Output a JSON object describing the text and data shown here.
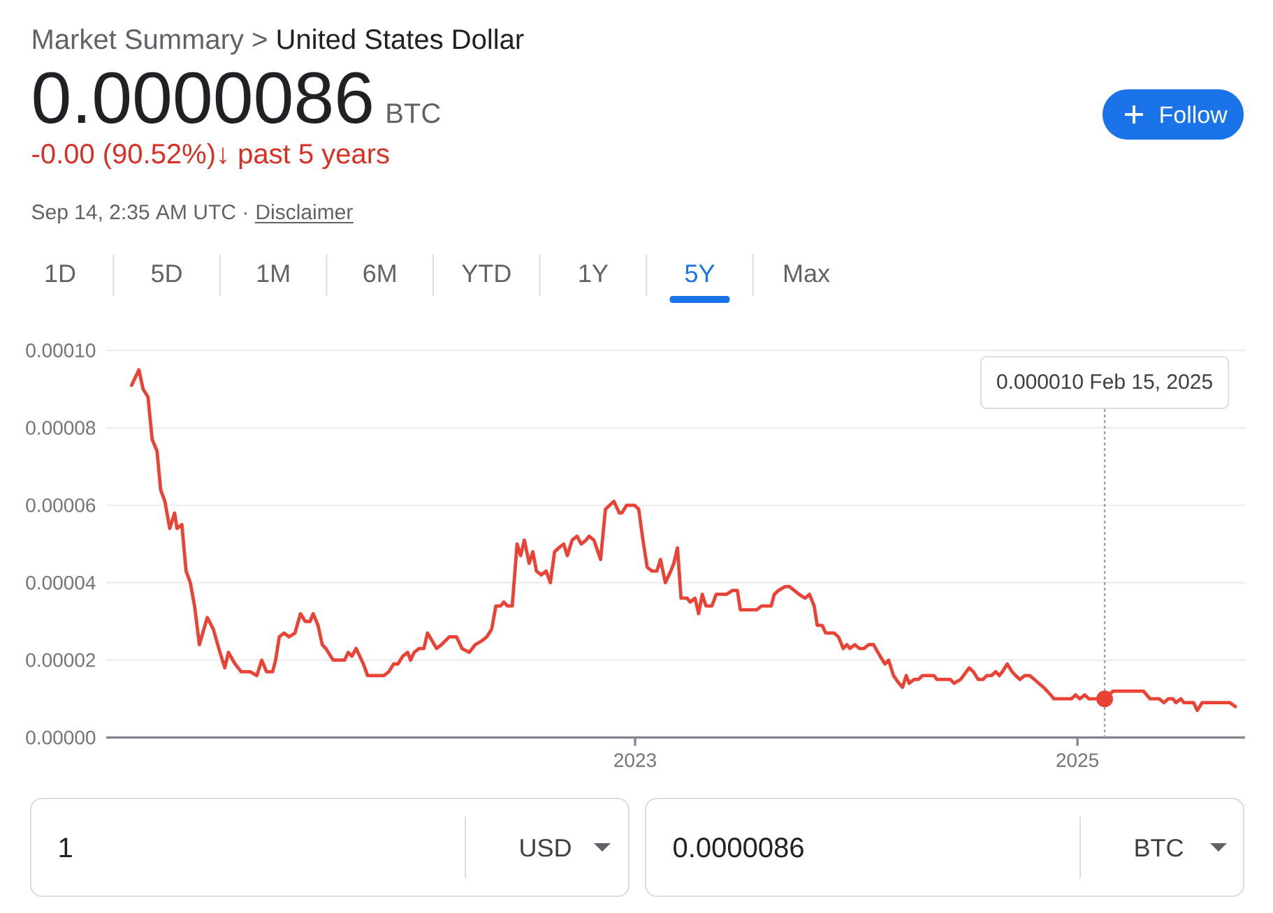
{
  "chart_data": {
    "type": "line",
    "title": "United States Dollar",
    "subtitle": "0.0000086",
    "x": [
      "2020-09-21",
      "2020-10-03",
      "2020-10-10",
      "2020-10-18",
      "2020-10-25",
      "2020-11-02",
      "2020-11-08",
      "2020-11-15",
      "2020-11-23",
      "2020-12-01",
      "2020-12-05",
      "2020-12-13",
      "2020-12-20",
      "2020-12-27",
      "2021-01-03",
      "2021-01-11",
      "2021-01-24",
      "2021-02-03",
      "2021-02-14",
      "2021-02-22",
      "2021-02-28",
      "2021-03-11",
      "2021-03-21",
      "2021-03-29",
      "2021-04-05",
      "2021-04-16",
      "2021-04-24",
      "2021-05-02",
      "2021-05-12",
      "2021-05-17",
      "2021-05-23",
      "2021-05-31",
      "2021-06-08",
      "2021-06-18",
      "2021-06-27",
      "2021-07-05",
      "2021-07-13",
      "2021-07-18",
      "2021-07-26",
      "2021-08-02",
      "2021-08-08",
      "2021-08-20",
      "2021-08-28",
      "2021-09-08",
      "2021-09-14",
      "2021-09-20",
      "2021-09-27",
      "2021-10-09",
      "2021-10-16",
      "2021-11-12",
      "2021-11-20",
      "2021-11-28",
      "2021-12-05",
      "2021-12-13",
      "2021-12-21",
      "2021-12-26",
      "2022-01-01",
      "2022-01-09",
      "2022-01-17",
      "2022-01-23",
      "2022-02-07",
      "2022-02-15",
      "2022-02-28",
      "2022-03-12",
      "2022-03-21",
      "2022-04-02",
      "2022-04-12",
      "2022-04-23",
      "2022-05-01",
      "2022-05-09",
      "2022-05-16",
      "2022-05-24",
      "2022-05-29",
      "2022-06-04",
      "2022-06-12",
      "2022-06-20",
      "2022-06-26",
      "2022-07-02",
      "2022-07-10",
      "2022-07-16",
      "2022-07-22",
      "2022-07-30",
      "2022-08-07",
      "2022-08-14",
      "2022-08-21",
      "2022-08-28",
      "2022-09-05",
      "2022-09-11",
      "2022-09-19",
      "2022-09-27",
      "2022-10-04",
      "2022-10-12",
      "2022-10-17",
      "2022-10-25",
      "2022-11-05",
      "2022-11-13",
      "2022-11-27",
      "2022-12-06",
      "2022-12-10",
      "2022-12-18",
      "2022-12-31",
      "2023-01-07",
      "2023-01-14",
      "2023-01-21",
      "2023-01-29",
      "2023-02-06",
      "2023-02-12",
      "2023-02-20",
      "2023-03-01",
      "2023-03-06",
      "2023-03-12",
      "2023-03-18",
      "2023-03-28",
      "2023-04-02",
      "2023-04-10",
      "2023-04-16",
      "2023-04-22",
      "2023-04-28",
      "2023-05-08",
      "2023-05-15",
      "2023-06-01",
      "2023-06-11",
      "2023-06-19",
      "2023-06-24",
      "2023-07-21",
      "2023-07-29",
      "2023-08-14",
      "2023-08-19",
      "2023-08-26",
      "2023-09-06",
      "2023-09-13",
      "2023-09-21",
      "2023-09-29",
      "2023-10-09",
      "2023-10-16",
      "2023-10-24",
      "2023-10-29",
      "2023-11-06",
      "2023-11-12",
      "2023-11-26",
      "2023-12-03",
      "2023-12-11",
      "2023-12-17",
      "2023-12-22",
      "2023-12-30",
      "2024-01-07",
      "2024-01-14",
      "2024-01-22",
      "2024-01-30",
      "2024-02-10",
      "2024-02-18",
      "2024-02-24",
      "2024-03-03",
      "2024-03-12",
      "2024-03-18",
      "2024-03-24",
      "2024-03-29",
      "2024-04-06",
      "2024-04-13",
      "2024-04-20",
      "2024-05-09",
      "2024-05-14",
      "2024-05-28",
      "2024-06-05",
      "2024-06-11",
      "2024-06-22",
      "2024-07-06",
      "2024-07-13",
      "2024-07-21",
      "2024-07-29",
      "2024-08-04",
      "2024-08-12",
      "2024-08-19",
      "2024-08-25",
      "2024-08-30",
      "2024-09-07",
      "2024-09-15",
      "2024-09-21",
      "2024-09-28",
      "2024-10-06",
      "2024-10-14",
      "2024-10-22",
      "2024-10-29",
      "2024-11-06",
      "2024-11-18",
      "2024-11-23",
      "2024-12-22",
      "2024-12-29",
      "2025-01-05",
      "2025-01-13",
      "2025-01-20",
      "2025-02-06",
      "2025-02-15",
      "2025-03-01",
      "2025-04-20",
      "2025-05-01",
      "2025-05-16",
      "2025-05-24",
      "2025-05-31",
      "2025-06-08",
      "2025-06-13",
      "2025-06-21",
      "2025-06-26",
      "2025-07-12",
      "2025-07-18",
      "2025-07-26",
      "2025-09-10",
      "2025-09-19"
    ],
    "values": [
      9.1e-05,
      9.5e-05,
      9e-05,
      8.8e-05,
      7.7e-05,
      7.4e-05,
      6.4e-05,
      6.1e-05,
      5.4e-05,
      5.8e-05,
      5.4e-05,
      5.5e-05,
      4.3e-05,
      4e-05,
      3.4e-05,
      2.4e-05,
      3.1e-05,
      2.8e-05,
      2.2e-05,
      1.8e-05,
      2.2e-05,
      1.9e-05,
      1.7e-05,
      1.7e-05,
      1.7e-05,
      1.6e-05,
      2e-05,
      1.7e-05,
      1.7e-05,
      2e-05,
      2.6e-05,
      2.7e-05,
      2.6e-05,
      2.7e-05,
      3.2e-05,
      3e-05,
      3e-05,
      3.2e-05,
      2.9e-05,
      2.4e-05,
      2.3e-05,
      2e-05,
      2e-05,
      2e-05,
      2.2e-05,
      2.1e-05,
      2.3e-05,
      1.9e-05,
      1.6e-05,
      1.6e-05,
      1.7e-05,
      1.9e-05,
      1.9e-05,
      2.1e-05,
      2.2e-05,
      2e-05,
      2.2e-05,
      2.3e-05,
      2.3e-05,
      2.7e-05,
      2.3e-05,
      2.4e-05,
      2.6e-05,
      2.6e-05,
      2.3e-05,
      2.2e-05,
      2.4e-05,
      2.5e-05,
      2.6e-05,
      2.8e-05,
      3.4e-05,
      3.4e-05,
      3.5e-05,
      3.4e-05,
      3.4e-05,
      5e-05,
      4.7e-05,
      5.1e-05,
      4.5e-05,
      4.8e-05,
      4.3e-05,
      4.2e-05,
      4.3e-05,
      4e-05,
      4.8e-05,
      4.9e-05,
      5e-05,
      4.7e-05,
      5.1e-05,
      5.2e-05,
      5e-05,
      5.1e-05,
      5.2e-05,
      5.1e-05,
      4.6e-05,
      5.9e-05,
      6.1e-05,
      5.8e-05,
      5.8e-05,
      6e-05,
      6e-05,
      5.9e-05,
      5.1e-05,
      4.4e-05,
      4.3e-05,
      4.3e-05,
      4.6e-05,
      4e-05,
      4.3e-05,
      4.5e-05,
      4.9e-05,
      3.6e-05,
      3.6e-05,
      3.5e-05,
      3.6e-05,
      3.2e-05,
      3.7e-05,
      3.4e-05,
      3.4e-05,
      3.7e-05,
      3.7e-05,
      3.8e-05,
      3.8e-05,
      3.3e-05,
      3.3e-05,
      3.4e-05,
      3.4e-05,
      3.7e-05,
      3.8e-05,
      3.9e-05,
      3.9e-05,
      3.8e-05,
      3.7e-05,
      3.6e-05,
      3.7e-05,
      3.4e-05,
      2.9e-05,
      2.9e-05,
      2.7e-05,
      2.7e-05,
      2.6e-05,
      2.3e-05,
      2.4e-05,
      2.3e-05,
      2.4e-05,
      2.3e-05,
      2.3e-05,
      2.4e-05,
      2.4e-05,
      2.1e-05,
      1.9e-05,
      2e-05,
      1.6e-05,
      1.4e-05,
      1.3e-05,
      1.6e-05,
      1.4e-05,
      1.5e-05,
      1.5e-05,
      1.6e-05,
      1.6e-05,
      1.5e-05,
      1.5e-05,
      1.5e-05,
      1.4e-05,
      1.5e-05,
      1.8e-05,
      1.7e-05,
      1.5e-05,
      1.5e-05,
      1.6e-05,
      1.6e-05,
      1.7e-05,
      1.6e-05,
      1.7e-05,
      1.9e-05,
      1.7e-05,
      1.6e-05,
      1.5e-05,
      1.6e-05,
      1.6e-05,
      1.5e-05,
      1.4e-05,
      1.3e-05,
      1.1e-05,
      1e-05,
      1e-05,
      1.1e-05,
      1e-05,
      1.1e-05,
      1e-05,
      1e-05,
      1e-05,
      1.2e-05,
      1.2e-05,
      1e-05,
      1e-05,
      9e-06,
      1e-05,
      1e-05,
      9e-06,
      1e-05,
      9e-06,
      9e-06,
      7e-06,
      9e-06,
      9e-06,
      8e-06
    ],
    "color": "#ea4335",
    "xlim": [
      "2020-08-10",
      "2025-10-05"
    ],
    "xticks": [
      "2023",
      "2025"
    ],
    "ylim": [
      0,
      0.0001
    ],
    "yticks": [
      {
        "value": 0,
        "label": "0.00000"
      },
      {
        "value": 2e-05,
        "label": "0.00002"
      },
      {
        "value": 4e-05,
        "label": "0.00004"
      },
      {
        "value": 6e-05,
        "label": "0.00006"
      },
      {
        "value": 8e-05,
        "label": "0.00008"
      },
      {
        "value": 0.0001,
        "label": "0.00010"
      }
    ],
    "grid": "y",
    "annotations": [
      "Market Summary >",
      "BTC",
      "-0.00 (90.52%)↓ past 5 years",
      "Sep 14, 2:35 AM UTC ·",
      "Disclaimer",
      "1D",
      "5D",
      "1M",
      "6M",
      "YTD",
      "1Y",
      "5Y",
      "Max",
      "Follow",
      "1",
      "USD",
      "0.0000086",
      "BTC",
      {
        "text": "0.000010 Feb 15, 2025",
        "x": "2025-02-15",
        "y": 1e-05
      }
    ]
  }
}
